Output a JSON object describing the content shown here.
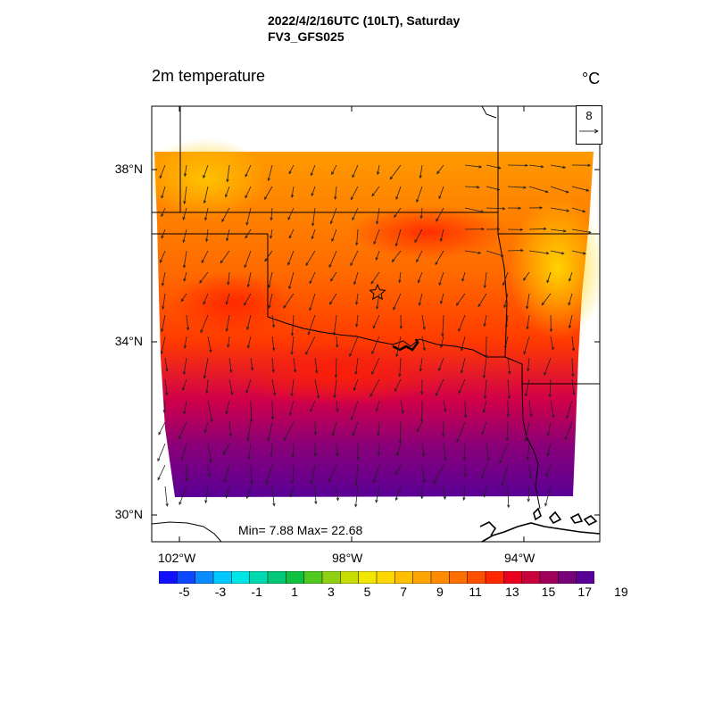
{
  "header": {
    "line1": "2022/4/2/16UTC (10LT), Saturday",
    "line2": "FV3_GFS025"
  },
  "variable": "2m temperature",
  "unit": "°C",
  "vector_reference": "8",
  "stats": "Min= 7.88 Max= 22.68",
  "lat_labels": [
    "38°N",
    "34°N",
    "30°N"
  ],
  "lon_labels": [
    "102°W",
    "98°W",
    "94°W"
  ],
  "colorbar": {
    "labels": [
      "-5",
      "-3",
      "-1",
      "1",
      "3",
      "5",
      "7",
      "9",
      "11",
      "13",
      "15",
      "17",
      "19"
    ],
    "colors": [
      "#1010ff",
      "#0d47ff",
      "#0a8cff",
      "#00c8ff",
      "#00e6e6",
      "#00d8b0",
      "#00c878",
      "#10c040",
      "#50c820",
      "#90d010",
      "#c8dc00",
      "#f0e600",
      "#ffd700",
      "#ffbe00",
      "#ffa500",
      "#ff8c00",
      "#ff6e00",
      "#ff5000",
      "#ff2800",
      "#e8001e",
      "#c8003c",
      "#a0005a",
      "#780078",
      "#5a0096"
    ]
  },
  "colors": {
    "warm": "#ff8c00",
    "hot": "#ff3000",
    "cool": "#5a0096",
    "yellow": "#ffd000"
  }
}
